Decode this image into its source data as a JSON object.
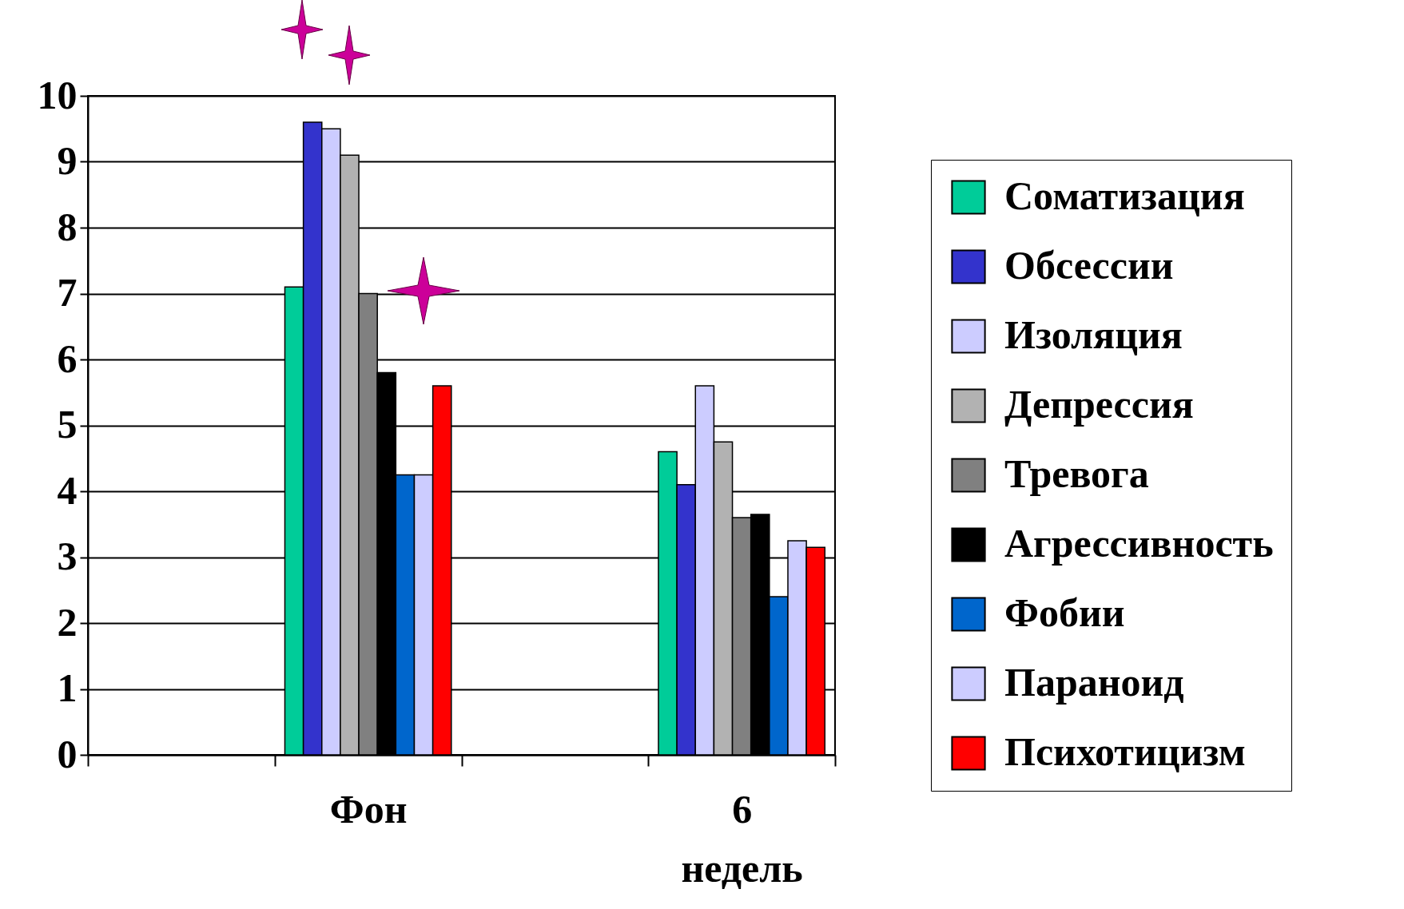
{
  "chart_data": {
    "type": "bar",
    "categories": [
      null,
      "Фон",
      null,
      "6 недель"
    ],
    "series": [
      {
        "name": "Соматизация",
        "color": "#00cc99",
        "values": [
          null,
          7.1,
          null,
          4.6
        ]
      },
      {
        "name": "Обсессии",
        "color": "#3333cc",
        "values": [
          null,
          9.6,
          null,
          4.1
        ]
      },
      {
        "name": "Изоляция",
        "color": "#ccccff",
        "values": [
          null,
          9.5,
          null,
          5.6
        ]
      },
      {
        "name": "Депрессия",
        "color": "#b2b2b2",
        "values": [
          null,
          9.1,
          null,
          4.75
        ]
      },
      {
        "name": "Тревога",
        "color": "#808080",
        "values": [
          null,
          7.0,
          null,
          3.6
        ]
      },
      {
        "name": "Агрессивность",
        "color": "#000000",
        "values": [
          null,
          5.8,
          null,
          3.65
        ]
      },
      {
        "name": "Фобии",
        "color": "#0066cc",
        "values": [
          null,
          4.25,
          null,
          2.4
        ]
      },
      {
        "name": "Параноид",
        "color": "#ccccff",
        "values": [
          null,
          4.25,
          null,
          3.25
        ]
      },
      {
        "name": "Психотицизм",
        "color": "#ff0000",
        "values": [
          null,
          5.6,
          null,
          3.15
        ]
      }
    ],
    "ylim": [
      0,
      10
    ],
    "yticks": [
      0,
      1,
      2,
      3,
      4,
      5,
      6,
      7,
      8,
      9,
      10
    ],
    "grid": "y",
    "legend": "right"
  }
}
